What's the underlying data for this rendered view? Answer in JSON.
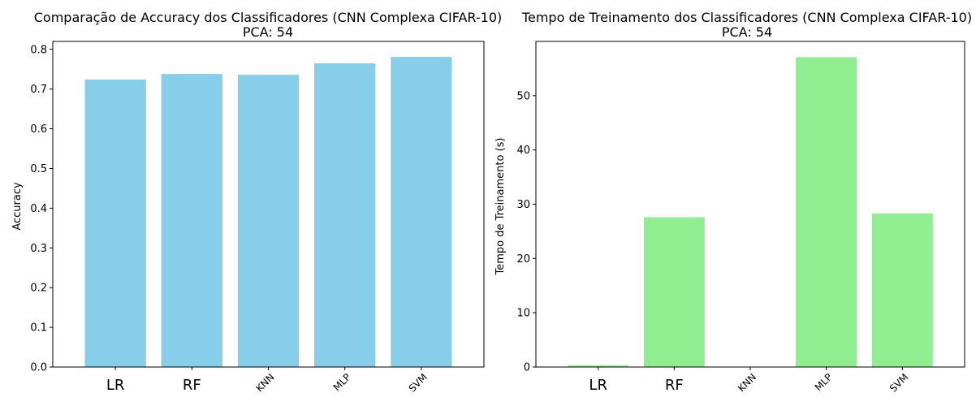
{
  "chart_data": [
    {
      "type": "bar",
      "title": "Comparação de Accuracy dos Classificadores (CNN Complexa CIFAR-10)",
      "subtitle": "PCA: 54",
      "xlabel": "",
      "ylabel": "Accuracy",
      "categories": [
        "LR",
        "RF",
        "KNN",
        "MLP",
        "SVM"
      ],
      "values": [
        0.724,
        0.738,
        0.736,
        0.765,
        0.781
      ],
      "ylim": [
        0,
        0.82
      ],
      "yticks": [
        0.0,
        0.1,
        0.2,
        0.3,
        0.4,
        0.5,
        0.6,
        0.7,
        0.8
      ],
      "ytick_labels": [
        "0.0",
        "0.1",
        "0.2",
        "0.3",
        "0.4",
        "0.5",
        "0.6",
        "0.7",
        "0.8"
      ],
      "color": "#87ceeb",
      "grid": false
    },
    {
      "type": "bar",
      "title": "Tempo de Treinamento dos Classificadores (CNN Complexa CIFAR-10)",
      "subtitle": "PCA: 54",
      "xlabel": "",
      "ylabel": "Tempo de Treinamento (s)",
      "categories": [
        "LR",
        "RF",
        "KNN",
        "MLP",
        "SVM"
      ],
      "values": [
        0.3,
        27.6,
        0.0,
        57.1,
        28.3
      ],
      "ylim": [
        0,
        60
      ],
      "yticks": [
        0,
        10,
        20,
        30,
        40,
        50
      ],
      "ytick_labels": [
        "0",
        "10",
        "20",
        "30",
        "40",
        "50"
      ],
      "color": "#90ee90",
      "grid": false
    }
  ]
}
